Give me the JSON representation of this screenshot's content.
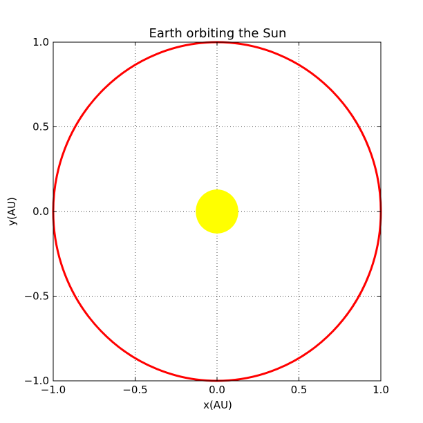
{
  "chart_data": {
    "type": "line",
    "title": "Earth orbiting the Sun",
    "xlabel": "x(AU)",
    "ylabel": "y(AU)",
    "xlim": [
      -1.0,
      1.0
    ],
    "ylim": [
      -1.0,
      1.0
    ],
    "x_ticks": [
      -1.0,
      -0.5,
      0.0,
      0.5,
      1.0
    ],
    "y_ticks": [
      -1.0,
      -0.5,
      0.0,
      0.5,
      1.0
    ],
    "x_tick_labels": [
      "−1.0",
      "−0.5",
      "0.0",
      "0.5",
      "1.0"
    ],
    "y_tick_labels": [
      "−1.0",
      "−0.5",
      "0.0",
      "0.5",
      "1.0"
    ],
    "grid": true,
    "grid_style": "dotted",
    "series": [
      {
        "kind": "orbit",
        "shape": "circle",
        "center": [
          0.0,
          0.0
        ],
        "radius": 1.0,
        "color": "#ff0000"
      }
    ],
    "markers": [
      {
        "kind": "sun",
        "x": 0.0,
        "y": 0.0,
        "radius": 0.13,
        "color": "#ffff00"
      }
    ]
  }
}
